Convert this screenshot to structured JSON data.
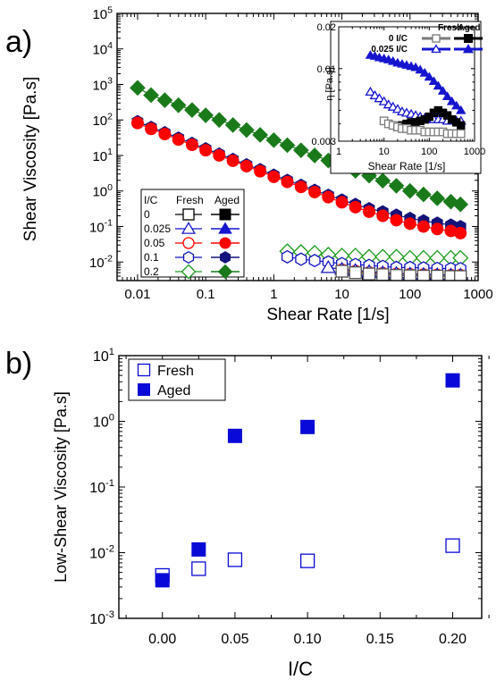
{
  "chart_data": [
    {
      "panel_label": "a)",
      "type": "scatter",
      "xlabel": "Shear Rate [1/s]",
      "ylabel": "Shear Viscosity [Pa.s]",
      "x_scale": "log",
      "y_scale": "log",
      "xlim": [
        0.005,
        1000
      ],
      "ylim": [
        0.003,
        100000
      ],
      "x_ticks": [
        "0.01",
        "0.1",
        "1",
        "10",
        "100",
        "1000"
      ],
      "y_tick_exponents": [
        "5",
        "4",
        "3",
        "2",
        "1",
        "0",
        "-1",
        "-2"
      ],
      "legend": {
        "header": [
          "I/C",
          "Fresh",
          "Aged"
        ],
        "rows": [
          "0",
          "0.025",
          "0.05",
          "0.1",
          "0.2"
        ],
        "position": "bottom-left"
      },
      "series": [
        {
          "condition": "Aged",
          "ic": "0.2",
          "marker": "diamond",
          "color": "#1a7a1a",
          "filled": true,
          "x": [
            0.01,
            0.0158,
            0.0251,
            0.0398,
            0.0631,
            0.1,
            0.158,
            0.251,
            0.398,
            0.631,
            1,
            1.58,
            2.51,
            3.98,
            6.31,
            10,
            15.8,
            25.1,
            39.8,
            63.1,
            100,
            158,
            251,
            398,
            550
          ],
          "y": [
            800,
            500,
            360,
            260,
            190,
            135,
            100,
            72,
            52,
            38,
            27,
            19.5,
            14,
            10,
            7.2,
            5.2,
            3.7,
            2.7,
            1.95,
            1.4,
            1.0,
            0.8,
            0.62,
            0.5,
            0.42
          ]
        },
        {
          "condition": "Aged",
          "ic": "0.1",
          "marker": "hexagon",
          "color": "#13137a",
          "filled": true,
          "x": [
            0.01,
            0.0158,
            0.0251,
            0.0398,
            0.0631,
            0.1,
            0.158,
            0.251,
            0.398,
            0.631,
            1,
            1.58,
            2.51,
            3.98,
            6.31,
            10,
            15.8,
            25.1,
            39.8,
            63.1,
            100,
            158,
            251,
            398,
            550
          ],
          "y": [
            90,
            62,
            44,
            31,
            22,
            15.5,
            11,
            7.8,
            5.5,
            4.0,
            2.8,
            2.0,
            1.45,
            1.05,
            0.76,
            0.56,
            0.42,
            0.32,
            0.26,
            0.21,
            0.17,
            0.145,
            0.125,
            0.11,
            0.1
          ]
        },
        {
          "condition": "Aged",
          "ic": "0.05",
          "marker": "circle",
          "color": "#ff0000",
          "filled": true,
          "x": [
            0.01,
            0.0158,
            0.0251,
            0.0398,
            0.0631,
            0.1,
            0.158,
            0.251,
            0.398,
            0.631,
            1,
            1.58,
            2.51,
            3.98,
            6.31,
            10,
            15.8,
            25.1,
            39.8,
            63.1,
            100,
            158,
            251,
            398,
            550
          ],
          "y": [
            82,
            56,
            40,
            28,
            20,
            14,
            10,
            7.1,
            5.0,
            3.6,
            2.5,
            1.8,
            1.3,
            0.93,
            0.67,
            0.48,
            0.35,
            0.26,
            0.2,
            0.15,
            0.12,
            0.1,
            0.085,
            0.075,
            0.065
          ]
        },
        {
          "condition": "Fresh",
          "ic": "0.2",
          "marker": "diamond",
          "color": "#1a9a1a",
          "filled": false,
          "x": [
            1.58,
            2.51,
            3.98,
            6.31,
            10,
            15.8,
            25.1,
            39.8,
            63.1,
            100,
            158,
            251,
            398,
            550
          ],
          "y": [
            0.02,
            0.019,
            0.018,
            0.016,
            0.015,
            0.015,
            0.014,
            0.014,
            0.014,
            0.013,
            0.013,
            0.013,
            0.013,
            0.013
          ]
        },
        {
          "condition": "Fresh",
          "ic": "0.1",
          "marker": "hexagon",
          "color": "#1010c0",
          "filled": false,
          "x": [
            1.58,
            2.51,
            3.98,
            6.31,
            10,
            15.8,
            25.1,
            39.8,
            63.1,
            100,
            158,
            251,
            398,
            550
          ],
          "y": [
            0.014,
            0.012,
            0.011,
            0.01,
            0.009,
            0.0085,
            0.008,
            0.0075,
            0.007,
            0.007,
            0.0068,
            0.0066,
            0.0065,
            0.0065
          ]
        },
        {
          "condition": "Fresh",
          "ic": "0.05",
          "marker": "circle",
          "color": "#ff2020",
          "filled": false,
          "x": [
            10,
            15.8,
            25.1,
            39.8,
            63.1,
            100,
            158,
            251,
            398,
            550
          ],
          "y": [
            0.006,
            0.0055,
            0.005,
            0.0048,
            0.0046,
            0.0045,
            0.0044,
            0.0043,
            0.0042,
            0.0042
          ]
        },
        {
          "condition": "Fresh",
          "ic": "0.025",
          "marker": "triangle",
          "color": "#1010c0",
          "filled": false,
          "x": [
            6.31,
            10,
            15.8,
            25.1,
            39.8,
            63.1,
            100,
            158,
            251,
            398,
            550
          ],
          "y": [
            0.007,
            0.0063,
            0.0058,
            0.0054,
            0.005,
            0.0048,
            0.0046,
            0.0045,
            0.0044,
            0.0043,
            0.0043
          ]
        },
        {
          "condition": "Fresh",
          "ic": "0",
          "marker": "square",
          "color": "#505050",
          "filled": false,
          "x": [
            10,
            15.8,
            25.1,
            39.8,
            63.1,
            100,
            158,
            251,
            398,
            550
          ],
          "y": [
            0.0055,
            0.005,
            0.0046,
            0.0044,
            0.0042,
            0.0041,
            0.004,
            0.004,
            0.0039,
            0.0039
          ]
        }
      ]
    },
    {
      "panel_label": "",
      "type": "line",
      "xlabel": "Shear Rate [1/s]",
      "ylabel": "η [Pa.s]",
      "x_scale": "log",
      "y_scale": "log",
      "xlim": [
        1,
        1000
      ],
      "ylim": [
        0.003,
        0.02
      ],
      "x_ticks": [
        "1",
        "10",
        "100",
        "1000"
      ],
      "y_ticks": [
        "0.003",
        "0.01",
        "0.02"
      ],
      "legend": {
        "header": [
          "Fresh",
          "Aged"
        ],
        "rows": [
          "0 I/C",
          "0.025 I/C"
        ],
        "position": "top-right"
      },
      "series": [
        {
          "label_row": "0.025 I/C",
          "condition": "Aged",
          "marker": "triangle",
          "color": "#1515d0",
          "filled": true,
          "x": [
            5,
            6.3,
            7.9,
            10,
            12.6,
            15.8,
            20,
            25.1,
            31.6,
            39.8,
            50,
            63.1,
            79.4,
            100,
            126,
            158,
            200,
            251,
            316,
            398,
            500
          ],
          "y": [
            0.0125,
            0.0123,
            0.012,
            0.0118,
            0.0116,
            0.0113,
            0.011,
            0.0108,
            0.0106,
            0.0104,
            0.0102,
            0.0098,
            0.0093,
            0.0087,
            0.0081,
            0.0075,
            0.0069,
            0.0063,
            0.0058,
            0.0054,
            0.005
          ]
        },
        {
          "label_row": "0.025 I/C",
          "condition": "Fresh",
          "marker": "triangle",
          "color": "#1515d0",
          "filled": false,
          "x": [
            5,
            6.3,
            7.9,
            10,
            12.6,
            15.8,
            20,
            25.1,
            31.6,
            39.8,
            50,
            63.1,
            79.4,
            100,
            126,
            158,
            200,
            251,
            316,
            398,
            500
          ],
          "y": [
            0.0068,
            0.0064,
            0.0061,
            0.0058,
            0.0055,
            0.0053,
            0.0051,
            0.0049,
            0.0048,
            0.0047,
            0.0046,
            0.0045,
            0.0044,
            0.0044,
            0.0043,
            0.0043,
            0.0043,
            0.0042,
            0.0042,
            0.0042,
            0.0042
          ]
        },
        {
          "label_row": "0 I/C",
          "condition": "Aged",
          "marker": "square",
          "color": "#000000",
          "filled": true,
          "x": [
            20,
            25.1,
            31.6,
            39.8,
            50,
            63.1,
            79.4,
            100,
            126,
            158,
            200,
            251,
            316,
            398,
            500
          ],
          "y": [
            0.0038,
            0.0039,
            0.004,
            0.0041,
            0.0041,
            0.0042,
            0.0043,
            0.0045,
            0.0048,
            0.005,
            0.0048,
            0.0046,
            0.0043,
            0.0041,
            0.0039
          ]
        },
        {
          "label_row": "0 I/C",
          "condition": "Fresh",
          "marker": "square",
          "color": "#7a7a7a",
          "filled": false,
          "x": [
            10,
            12.6,
            15.8,
            20,
            25.1,
            31.6,
            39.8,
            50,
            63.1,
            79.4,
            100,
            126,
            158,
            200,
            251,
            316,
            398,
            500
          ],
          "y": [
            0.0042,
            0.004,
            0.0039,
            0.0038,
            0.0037,
            0.0037,
            0.0036,
            0.0036,
            0.0036,
            0.0035,
            0.0035,
            0.0035,
            0.0035,
            0.0035,
            0.0034,
            0.0034,
            0.0034,
            0.0034
          ]
        }
      ]
    },
    {
      "panel_label": "b)",
      "type": "scatter",
      "xlabel": "I/C",
      "ylabel": "Low-Shear Viscosity [Pa.s]",
      "y_scale": "log",
      "xlim": [
        -0.03,
        0.22
      ],
      "ylim": [
        0.001,
        10
      ],
      "x_ticks": [
        "0.00",
        "0.05",
        "0.10",
        "0.15",
        "0.20"
      ],
      "y_tick_exponents": [
        "1",
        "0",
        "-1",
        "-2",
        "-3"
      ],
      "legend": {
        "entries": [
          "Fresh",
          "Aged"
        ],
        "position": "top-left"
      },
      "series": [
        {
          "name": "Fresh",
          "marker": "square",
          "color": "#0a0ad8",
          "filled": false,
          "x": [
            0,
            0.025,
            0.05,
            0.1,
            0.2
          ],
          "y": [
            0.0045,
            0.0057,
            0.0078,
            0.0075,
            0.0128
          ]
        },
        {
          "name": "Aged",
          "marker": "square",
          "color": "#0a0ad8",
          "filled": true,
          "x": [
            0,
            0.025,
            0.05,
            0.1,
            0.2
          ],
          "y": [
            0.0038,
            0.0112,
            0.6,
            0.82,
            4.2
          ]
        }
      ]
    }
  ]
}
